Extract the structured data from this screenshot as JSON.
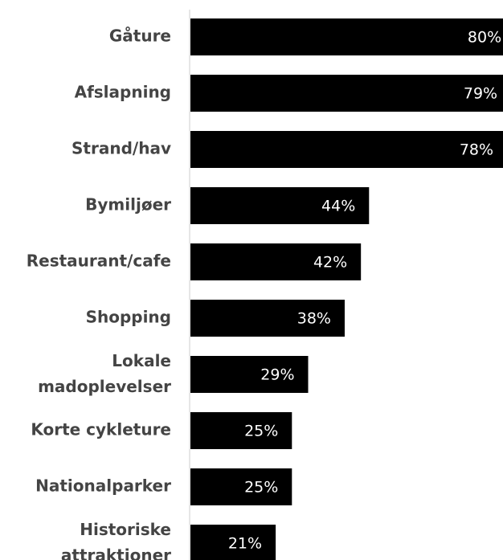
{
  "chart_data": {
    "type": "bar",
    "orientation": "horizontal",
    "categories": [
      "Gåture",
      "Afslapning",
      "Strand/hav",
      "Bymiljøer",
      "Restaurant/cafe",
      "Shopping",
      "Lokale madoplevelser",
      "Korte cykleture",
      "Nationalparker",
      "Historiske attraktioner"
    ],
    "values": [
      80,
      79,
      78,
      44,
      42,
      38,
      29,
      25,
      25,
      21
    ],
    "value_labels": [
      "80%",
      "79%",
      "78%",
      "44%",
      "42%",
      "38%",
      "29%",
      "25%",
      "25%",
      "21%"
    ],
    "color": "#000000",
    "xlim": [
      0,
      77
    ]
  }
}
